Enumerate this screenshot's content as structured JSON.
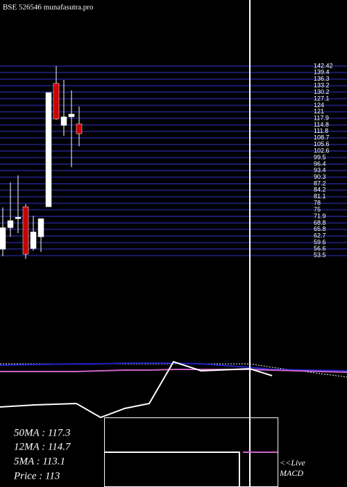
{
  "chart_data": [
    {
      "type": "candlestick",
      "title": "BSE 526546  munafasutra.pro",
      "open": [
        56.5,
        66.6,
        70.8,
        76.4,
        56.8,
        62.3,
        76.4,
        134.3,
        114.6,
        118.6,
        115.3
      ],
      "high": [
        76.1,
        87.8,
        91.1,
        77.7,
        72.2,
        70.8,
        130.0,
        142.4,
        135.9,
        131.0,
        123.5
      ],
      "low": [
        53.2,
        62.3,
        64.0,
        51.9,
        55.8,
        55.2,
        76.4,
        117.2,
        109.7,
        95.0,
        104.8
      ],
      "close": [
        66.6,
        69.9,
        71.5,
        54.2,
        64.6,
        70.8,
        130.0,
        117.6,
        118.6,
        119.9,
        110.7
      ],
      "up_color": "#ffffff",
      "down_color": "#cc0000",
      "grid_color": "#1c1c6e",
      "ylim": [
        51.0,
        142.42
      ],
      "yticks": [
        142.42,
        139.4,
        136.3,
        133.2,
        130.2,
        127.1,
        124.0,
        121.0,
        117.9,
        114.8,
        111.8,
        108.7,
        105.6,
        102.6,
        99.5,
        96.4,
        93.4,
        90.3,
        87.2,
        84.2,
        81.1,
        78.0,
        75.0,
        71.9,
        68.8,
        65.8,
        62.7,
        59.6,
        56.6,
        53.5
      ],
      "grid": true,
      "info": [
        "50MA : 117.3",
        "12MA : 114.7",
        "5MA : 113.1",
        "Price   : 113"
      ]
    },
    {
      "type": "line",
      "x": [
        0,
        50,
        110,
        145,
        180,
        215,
        250,
        290,
        360,
        392,
        500
      ],
      "xlim": [
        0,
        500
      ],
      "ylim": [
        0,
        100
      ],
      "series": [
        {
          "name": null,
          "color": "#ffffff",
          "dashed": true,
          "values": [
            77,
            77,
            77,
            77,
            77,
            77,
            77,
            77,
            77,
            72,
            58
          ]
        },
        {
          "name": null,
          "color": "#2222cc",
          "values": [
            75,
            76,
            77,
            77,
            78,
            78,
            78,
            77,
            72,
            69,
            67
          ]
        },
        {
          "name": null,
          "color": "#cc66cc",
          "values": [
            66,
            66,
            66,
            67,
            68,
            68,
            69,
            69,
            69,
            68,
            65
          ]
        },
        {
          "name": null,
          "color": "#ffffff",
          "values": [
            15,
            18,
            20,
            0,
            13,
            20,
            80,
            67,
            70,
            60,
            null
          ]
        }
      ],
      "label": [
        "<<Live",
        "MACD"
      ]
    }
  ]
}
